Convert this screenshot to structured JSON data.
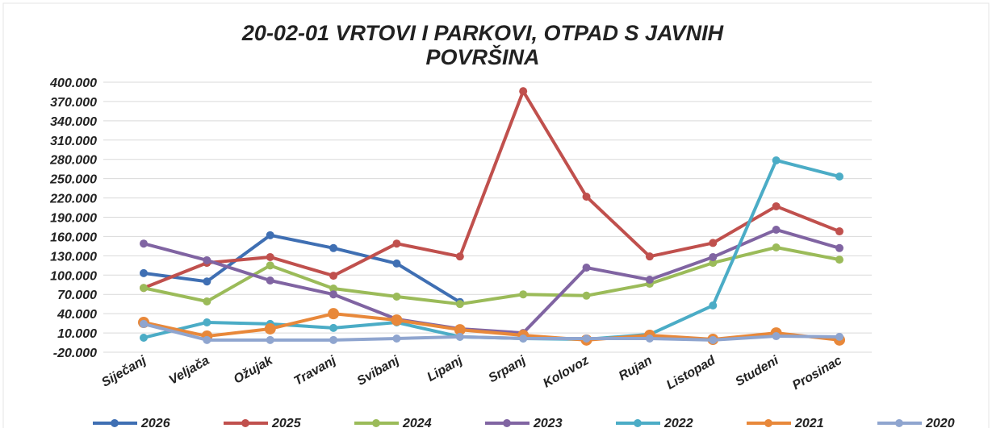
{
  "chart_data": {
    "type": "line",
    "title": [
      "20-02-01 VRTOVI I PARKOVI, OTPAD S JAVNIH",
      "POVRŠINA"
    ],
    "categories": [
      "Siječanj",
      "Veljača",
      "Ožujak",
      "Travanj",
      "Svibanj",
      "Lipanj",
      "Srpanj",
      "Kolovoz",
      "Rujan",
      "Listopad",
      "Studeni",
      "Prosinac"
    ],
    "ylim": [
      -20000,
      400000
    ],
    "yticks": [
      {
        "value": -20000,
        "label": "-20.000"
      },
      {
        "value": 10000,
        "label": "10.000"
      },
      {
        "value": 40000,
        "label": "40.000"
      },
      {
        "value": 70000,
        "label": "70.000"
      },
      {
        "value": 100000,
        "label": "100.000"
      },
      {
        "value": 130000,
        "label": "130.000"
      },
      {
        "value": 160000,
        "label": "160.000"
      },
      {
        "value": 190000,
        "label": "190.000"
      },
      {
        "value": 220000,
        "label": "220.000"
      },
      {
        "value": 250000,
        "label": "250.000"
      },
      {
        "value": 280000,
        "label": "280.000"
      },
      {
        "value": 310000,
        "label": "310.000"
      },
      {
        "value": 340000,
        "label": "340.000"
      },
      {
        "value": 370000,
        "label": "370.000"
      },
      {
        "value": 400000,
        "label": "400.000"
      }
    ],
    "grid": true,
    "legend": "bottom",
    "series": [
      {
        "name": "2026",
        "color": "#3f6fb3",
        "values": [
          103000,
          90000,
          162000,
          142000,
          118000,
          58000,
          null,
          null,
          null,
          null,
          null,
          null
        ]
      },
      {
        "name": "2025",
        "color": "#c0504d",
        "values": [
          80000,
          119000,
          128000,
          99000,
          149000,
          129000,
          386000,
          222000,
          129000,
          150000,
          207000,
          168000
        ]
      },
      {
        "name": "2024",
        "color": "#9bbb59",
        "values": [
          80000,
          59000,
          115000,
          79000,
          66500,
          55000,
          70000,
          68000,
          86500,
          119000,
          143000,
          124000
        ]
      },
      {
        "name": "2023",
        "color": "#8064a2",
        "values": [
          149000,
          123000,
          91600,
          70000,
          31400,
          16400,
          10000,
          111600,
          92800,
          128000,
          170600,
          142000
        ]
      },
      {
        "name": "2022",
        "color": "#4bacc6",
        "values": [
          2600,
          26400,
          24000,
          17800,
          26400,
          4000,
          1300,
          0,
          7700,
          52700,
          278400,
          253300
        ]
      },
      {
        "name": "2021",
        "color": "#e8883a",
        "values": [
          26400,
          5000,
          16400,
          40000,
          30000,
          15000,
          6300,
          -1000,
          6300,
          0,
          10000,
          -1000
        ]
      },
      {
        "name": "2020",
        "color": "#8fa5cf",
        "values": [
          24000,
          -1000,
          -1000,
          -1000,
          1300,
          4000,
          1300,
          1300,
          1300,
          -1000,
          5000,
          4000
        ]
      }
    ]
  }
}
